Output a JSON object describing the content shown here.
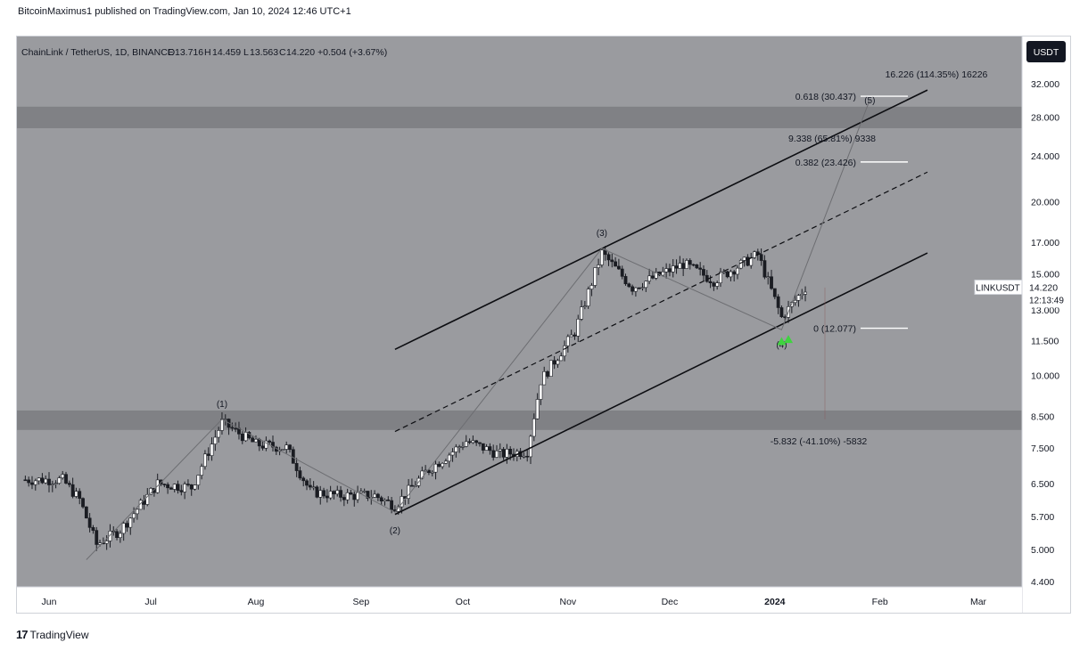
{
  "header": {
    "published_text": "BitcoinMaximus1 published on TradingView.com, Jan 10, 2024 12:46 UTC+1"
  },
  "footer": {
    "brand": "TradingView",
    "brand_icon": "tradingview-logo-icon"
  },
  "chart_data": {
    "type": "candlestick",
    "symbol": {
      "name": "ChainLink / TetherUS, 1D, BINANCE",
      "o_label": "O",
      "o": "13.716",
      "h_label": "H",
      "h": "14.459",
      "l_label": "L",
      "l": "13.563",
      "c_label": "C",
      "c": "14.220",
      "change": "+0.504 (+3.67%)"
    },
    "currency": "USDT",
    "scale": "log",
    "price_ticks": [
      "32.000",
      "28.000",
      "24.000",
      "20.000",
      "17.000",
      "15.000",
      "13.000",
      "11.500",
      "10.000",
      "8.500",
      "7.500",
      "6.500",
      "5.700",
      "5.000",
      "4.400"
    ],
    "time_ticks": [
      "Jun",
      "Jul",
      "Aug",
      "Sep",
      "Oct",
      "Nov",
      "Dec",
      "2024",
      "Feb",
      "Mar"
    ],
    "last_price": {
      "label": "LINKUSDT",
      "value": "14.220",
      "countdown": "12:13:49"
    },
    "waves": [
      {
        "label": "(1)",
        "date": "2023-07-22",
        "price": 8.4
      },
      {
        "label": "(2)",
        "date": "2023-09-11",
        "price": 5.8
      },
      {
        "label": "(3)",
        "date": "2023-11-11",
        "price": 16.6
      },
      {
        "label": "(4)",
        "date": "2024-01-03",
        "price": 12.0
      },
      {
        "label": "(5)",
        "date": "2024-01-29",
        "price": 30.0
      }
    ],
    "fib_levels": [
      {
        "label": "0.618 (30.437)",
        "price": 30.437
      },
      {
        "label": "0.382 (23.426)",
        "price": 23.426
      },
      {
        "label": "0 (12.077)",
        "price": 12.077
      }
    ],
    "measure_labels": [
      {
        "text": "16.226 (114.35%) 16226"
      },
      {
        "text": "9.338 (65.81%) 9338"
      },
      {
        "text": "-5.832 (-41.10%) -5832"
      }
    ],
    "zones": [
      {
        "name": "resistance",
        "low": 26.8,
        "high": 29.2
      },
      {
        "name": "support",
        "low": 8.05,
        "high": 8.7
      }
    ],
    "channel": {
      "upper": [
        {
          "date": "2023-09-11",
          "price": 11.1
        },
        {
          "date": "2024-02-15",
          "price": 31.2
        }
      ],
      "middle": [
        {
          "date": "2023-09-11",
          "price": 8.0
        },
        {
          "date": "2024-02-15",
          "price": 22.5
        }
      ],
      "lower": [
        {
          "date": "2023-09-11",
          "price": 5.75
        },
        {
          "date": "2024-02-15",
          "price": 16.3
        }
      ]
    },
    "signals": [
      {
        "type": "bullish-triangle",
        "date": "2024-01-03",
        "price": 11.45
      },
      {
        "type": "bullish-triangle",
        "date": "2024-01-05",
        "price": 11.55
      }
    ],
    "colors": {
      "background": "#9a9b9f",
      "zone": "#7b7c80",
      "bullish": "#ffffff",
      "bearish": "#1b1d23",
      "signal": "#3fd33f"
    }
  }
}
